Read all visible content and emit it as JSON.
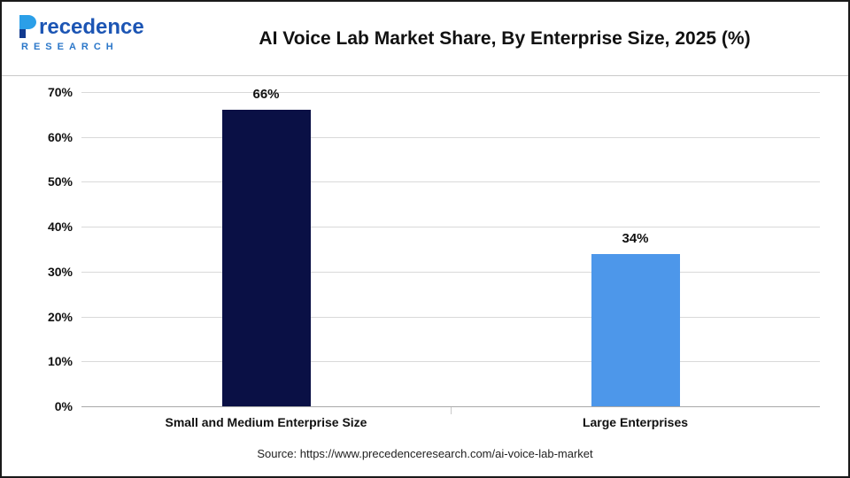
{
  "header": {
    "logo": {
      "brand": "recedence",
      "letter": "P",
      "sub": "RESEARCH"
    },
    "title": "AI Voice Lab Market Share, By Enterprise Size, 2025 (%)"
  },
  "chart_data": {
    "type": "bar",
    "title": "AI Voice Lab Market Share, By Enterprise Size, 2025 (%)",
    "categories": [
      "Small and Medium Enterprise Size",
      "Large Enterprises"
    ],
    "values": [
      66,
      34
    ],
    "value_labels": [
      "66%",
      "34%"
    ],
    "bar_colors": [
      "#0a1045",
      "#4d97ea"
    ],
    "xlabel": "",
    "ylabel": "",
    "ylim": [
      0,
      70
    ],
    "ytick_values": [
      70,
      60,
      50,
      40,
      30,
      20,
      10,
      0
    ],
    "ytick_labels": [
      "70%",
      "60%",
      "50%",
      "40%",
      "30%",
      "20%",
      "10%",
      "0%"
    ],
    "grid": true,
    "legend": "none"
  },
  "footer": {
    "source": "Source: https://www.precedenceresearch.com/ai-voice-lab-market"
  }
}
